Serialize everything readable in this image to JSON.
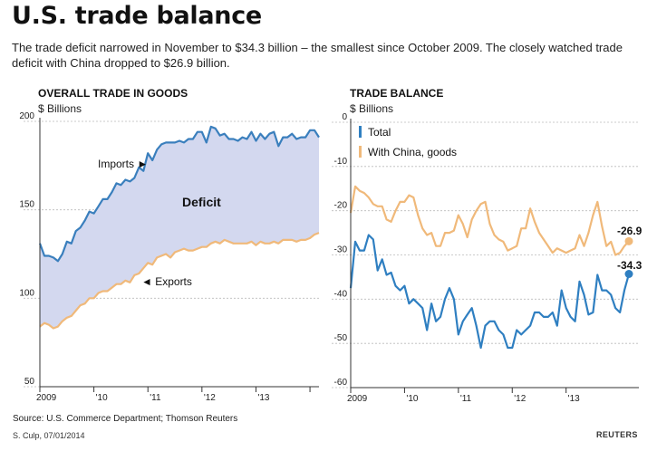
{
  "header": {
    "title": "U.S. trade balance",
    "subtitle": "The trade deficit narrowed in November to $34.3 billion – the smallest since October 2009. The closely watched trade deficit with China dropped to $26.9 billion."
  },
  "footer": {
    "source": "Source: U.S. Commerce Department; Thomson Reuters",
    "credit": "S. Culp, 07/01/2014",
    "brand": "REUTERS"
  },
  "colors": {
    "imports": "#3a7fbd",
    "exports": "#f0b97a",
    "deficit_fill": "#d3d8ef",
    "total": "#2f7fc1",
    "china": "#f0b97a",
    "grid": "#bbbbbb"
  },
  "chart_data": [
    {
      "type": "area",
      "title": "OVERALL TRADE IN GOODS",
      "unit_label": "$ Billions",
      "ylim": [
        50,
        200
      ],
      "yticks": [
        50,
        100,
        150,
        200
      ],
      "x_tick_labels": [
        "2009",
        "'10",
        "'11",
        "'12",
        "'13"
      ],
      "annotations": {
        "imports": "Imports ►",
        "exports": "◄ Exports",
        "deficit": "Deficit"
      },
      "series": [
        {
          "name": "Imports",
          "values": [
            131,
            124,
            124,
            123,
            121,
            125,
            132,
            131,
            138,
            140,
            144,
            149,
            148,
            152,
            156,
            156,
            160,
            165,
            164,
            167,
            166,
            168,
            174,
            172,
            182,
            178,
            184,
            187,
            188,
            188,
            188,
            189,
            188,
            190,
            190,
            194,
            194,
            188,
            197,
            196,
            192,
            193,
            190,
            190,
            189,
            191,
            190,
            194,
            189,
            193,
            190,
            193,
            194,
            186,
            191,
            191,
            193,
            190,
            191,
            191,
            195,
            195,
            191
          ]
        },
        {
          "name": "Exports",
          "values": [
            84,
            86,
            85,
            83,
            84,
            87,
            89,
            90,
            93,
            96,
            97,
            100,
            100,
            103,
            104,
            104,
            106,
            108,
            108,
            110,
            109,
            113,
            114,
            117,
            120,
            119,
            123,
            124,
            125,
            123,
            126,
            127,
            128,
            127,
            127,
            128,
            129,
            129,
            131,
            132,
            131,
            133,
            132,
            131,
            131,
            131,
            131,
            132,
            130,
            132,
            131,
            131,
            132,
            131,
            133,
            133,
            133,
            132,
            133,
            133,
            134,
            136,
            137
          ]
        }
      ]
    },
    {
      "type": "line",
      "title": "TRADE BALANCE",
      "unit_label": "$ Billions",
      "ylim": [
        -60,
        0
      ],
      "yticks": [
        0,
        -10,
        -20,
        -30,
        -40,
        -50,
        -60
      ],
      "x_tick_labels": [
        "2009",
        "'10",
        "'11",
        "'12",
        "'13"
      ],
      "legend": [
        "Total",
        "With China, goods"
      ],
      "series": [
        {
          "name": "Total",
          "values": [
            -37.5,
            -27,
            -29,
            -29,
            -25.5,
            -26.5,
            -33.5,
            -31,
            -34.5,
            -34,
            -37,
            -38,
            -37,
            -41,
            -40,
            -41,
            -42,
            -47,
            -41,
            -45,
            -44,
            -40,
            -37.5,
            -40,
            -48,
            -45,
            -43.5,
            -42,
            -46,
            -51,
            -46,
            -45,
            -45,
            -47,
            -48,
            -51,
            -51,
            -47,
            -48,
            -47,
            -46,
            -43,
            -43,
            -44,
            -44,
            -43,
            -46,
            -38,
            -42,
            -44,
            -45,
            -36,
            -39,
            -43.5,
            -43,
            -34.5,
            -38,
            -38,
            -39,
            -42,
            -43,
            -38,
            -34.3
          ]
        },
        {
          "name": "With China, goods",
          "values": [
            -20.5,
            -14.5,
            -15.5,
            -16,
            -17,
            -18.5,
            -19,
            -19,
            -22,
            -22.5,
            -20,
            -18,
            -18,
            -16.5,
            -17,
            -21,
            -24,
            -25.5,
            -25,
            -28,
            -28,
            -25,
            -25,
            -24.5,
            -21,
            -23,
            -26,
            -22,
            -20,
            -18.5,
            -18,
            -23,
            -25.5,
            -26.5,
            -27,
            -29,
            -28.5,
            -28,
            -24,
            -24,
            -19.5,
            -22.5,
            -25,
            -26.5,
            -28,
            -29.5,
            -28.5,
            -29,
            -29.5,
            -29,
            -28.5,
            -25.5,
            -28,
            -25,
            -21,
            -18,
            -23.5,
            -28,
            -27,
            -30,
            -29.5,
            -28,
            -26.9
          ]
        }
      ],
      "end_labels": {
        "china": "-26.9",
        "total": "-34.3"
      }
    }
  ]
}
